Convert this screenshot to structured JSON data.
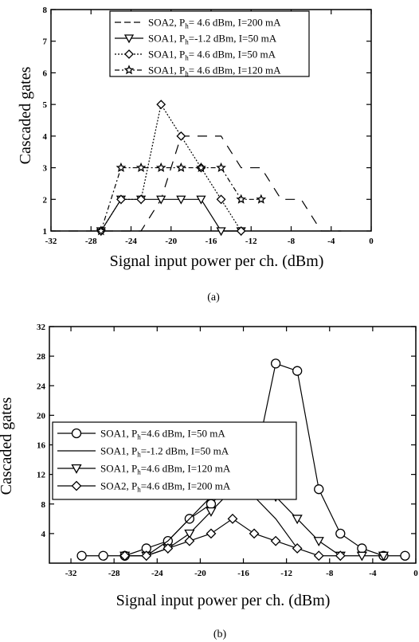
{
  "chart_data": [
    {
      "type": "line",
      "panel_label": "(a)",
      "xlabel": "Signal input power per ch. (dBm)",
      "ylabel": "Cascaded gates",
      "xlim": [
        -32,
        0
      ],
      "ylim": [
        1,
        8
      ],
      "xticks": [
        -32,
        -28,
        -24,
        -20,
        -16,
        -12,
        -8,
        -4,
        0
      ],
      "yticks": [
        1,
        2,
        3,
        4,
        5,
        6,
        7,
        8
      ],
      "legend_position": "top-right",
      "series": [
        {
          "name_main": "SOA2, P",
          "name_sub": "h",
          "name_rest": "= 4.6 dBm, I=200 mA",
          "marker": "none",
          "dash": "12,10",
          "x": [
            -32,
            -31,
            -29,
            -27,
            -25,
            -23,
            -21,
            -19,
            -17,
            -15,
            -13,
            -11,
            -9,
            -7,
            -5,
            -3
          ],
          "y": [
            1,
            1,
            1,
            1,
            1,
            1,
            2,
            4,
            4,
            4,
            3,
            3,
            2,
            2,
            1,
            1
          ]
        },
        {
          "name_main": "SOA1, P",
          "name_sub": "h",
          "name_rest": "=-1.2 dBm, I=50 mA",
          "marker": "triangle-down",
          "dash": "",
          "x": [
            -27,
            -25,
            -23,
            -21,
            -19,
            -17,
            -15,
            -13
          ],
          "y": [
            1,
            2,
            2,
            2,
            2,
            2,
            1,
            1
          ]
        },
        {
          "name_main": "SOA1, P",
          "name_sub": "h",
          "name_rest": "= 4.6 dBm, I=50 mA",
          "marker": "diamond",
          "dash": "2,2",
          "x": [
            -27,
            -25,
            -23,
            -21,
            -19,
            -17,
            -15,
            -13
          ],
          "y": [
            1,
            2,
            2,
            5,
            4,
            3,
            2,
            1
          ]
        },
        {
          "name_main": "SOA1, P",
          "name_sub": "h",
          "name_rest": "= 4.6 dBm, I=120 mA",
          "marker": "star",
          "dash": "6,3,2,3",
          "x": [
            -27,
            -25,
            -23,
            -21,
            -19,
            -17,
            -15,
            -13,
            -11
          ],
          "y": [
            1,
            3,
            3,
            3,
            3,
            3,
            3,
            2,
            2
          ]
        }
      ]
    },
    {
      "type": "line",
      "panel_label": "(b)",
      "xlabel": "Signal input power per ch. (dBm)",
      "ylabel": "Cascaded gates",
      "xlim": [
        -34,
        0
      ],
      "ylim": [
        0,
        32
      ],
      "xticks": [
        -32,
        -28,
        -24,
        -20,
        -16,
        -12,
        -8,
        -4,
        0
      ],
      "yticks": [
        4,
        8,
        12,
        16,
        20,
        24,
        28,
        32
      ],
      "legend_position": "center-left",
      "series": [
        {
          "name_main": "SOA1, P",
          "name_sub": "h",
          "name_rest": "=4.6 dBm, I=50 mA",
          "marker": "circle",
          "dash": "",
          "x": [
            -31,
            -29,
            -27,
            -25,
            -23,
            -21,
            -19,
            -17,
            -15,
            -13,
            -11,
            -9,
            -7,
            -5,
            -3,
            -1
          ],
          "y": [
            1,
            1,
            1,
            2,
            3,
            6,
            8,
            11,
            13,
            27,
            26,
            10,
            4,
            2,
            1,
            1
          ]
        },
        {
          "name_main": "SOA1, P",
          "name_sub": "h",
          "name_rest": "=-1.2 dBm, I=50 mA",
          "marker": "none",
          "dash": "",
          "x": [
            -25,
            -23,
            -21,
            -19,
            -17,
            -15,
            -13,
            -11
          ],
          "y": [
            1,
            3,
            6,
            9,
            11,
            9,
            6,
            2
          ]
        },
        {
          "name_main": "SOA1, P",
          "name_sub": "h",
          "name_rest": "=4.6 dBm, I=120 mA",
          "marker": "triangle-down",
          "dash": "",
          "x": [
            -27,
            -25,
            -23,
            -21,
            -19,
            -17,
            -15,
            -13,
            -11,
            -9,
            -7,
            -5,
            -3
          ],
          "y": [
            1,
            1,
            2,
            4,
            7,
            10,
            11,
            9,
            6,
            3,
            1,
            1,
            1
          ]
        },
        {
          "name_main": "SOA2, P",
          "name_sub": "h",
          "name_rest": "=4.6 dBm, I=200 mA",
          "marker": "diamond",
          "dash": "",
          "x": [
            -27,
            -25,
            -23,
            -21,
            -19,
            -17,
            -15,
            -13,
            -11,
            -9,
            -7
          ],
          "y": [
            1,
            1,
            2,
            3,
            4,
            6,
            4,
            3,
            2,
            1,
            1
          ]
        }
      ]
    }
  ]
}
